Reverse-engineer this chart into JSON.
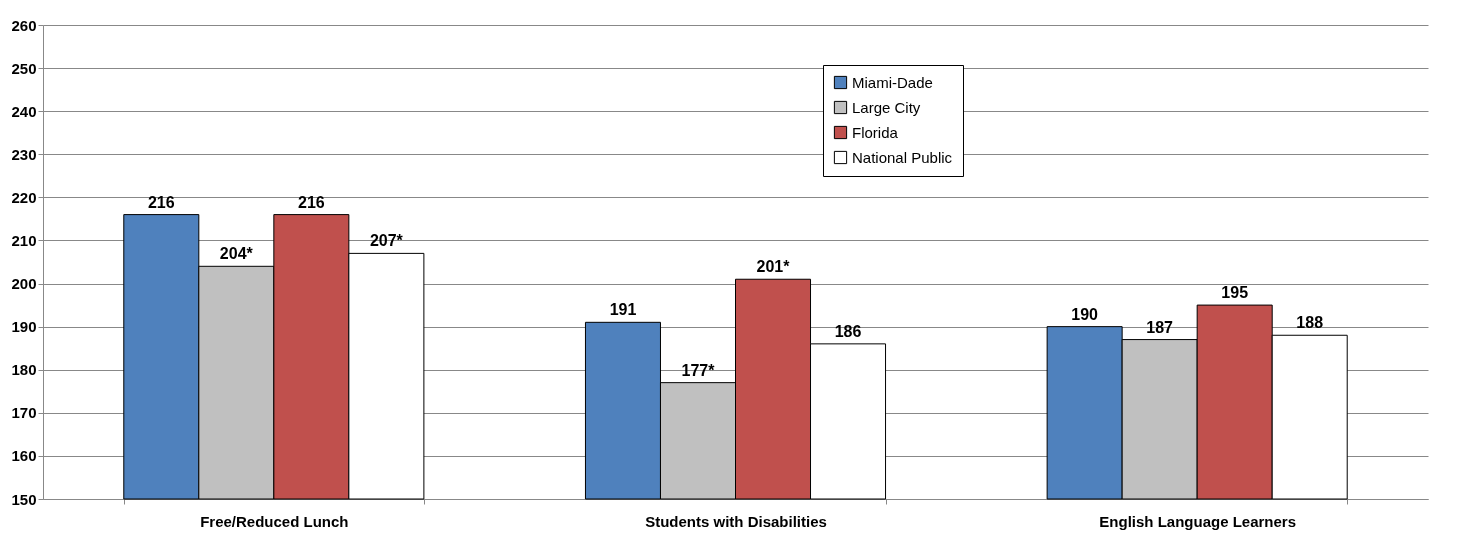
{
  "chart_data": {
    "type": "bar",
    "categories": [
      "Free/Reduced Lunch",
      "Students with Disabilities",
      "English Language Learners"
    ],
    "series": [
      {
        "name": "Miami-Dade",
        "color": "#4f81bd",
        "values": [
          216,
          191,
          190
        ],
        "value_labels": [
          "216",
          "191",
          "190"
        ]
      },
      {
        "name": "Large City",
        "color": "#c0c0c0",
        "values": [
          204,
          177,
          187
        ],
        "value_labels": [
          "204*",
          "177*",
          "187"
        ]
      },
      {
        "name": "Florida",
        "color": "#c0504d",
        "values": [
          216,
          201,
          195
        ],
        "value_labels": [
          "216",
          "201*",
          "195"
        ]
      },
      {
        "name": "National Public",
        "color": "#ffffff",
        "values": [
          207,
          186,
          188
        ],
        "value_labels": [
          "207*",
          "186",
          "188"
        ]
      }
    ],
    "ylim": [
      150,
      260
    ],
    "yticks": [
      150,
      160,
      170,
      180,
      190,
      200,
      210,
      220,
      230,
      240,
      250,
      260
    ],
    "grid": "y",
    "legend": "top"
  }
}
